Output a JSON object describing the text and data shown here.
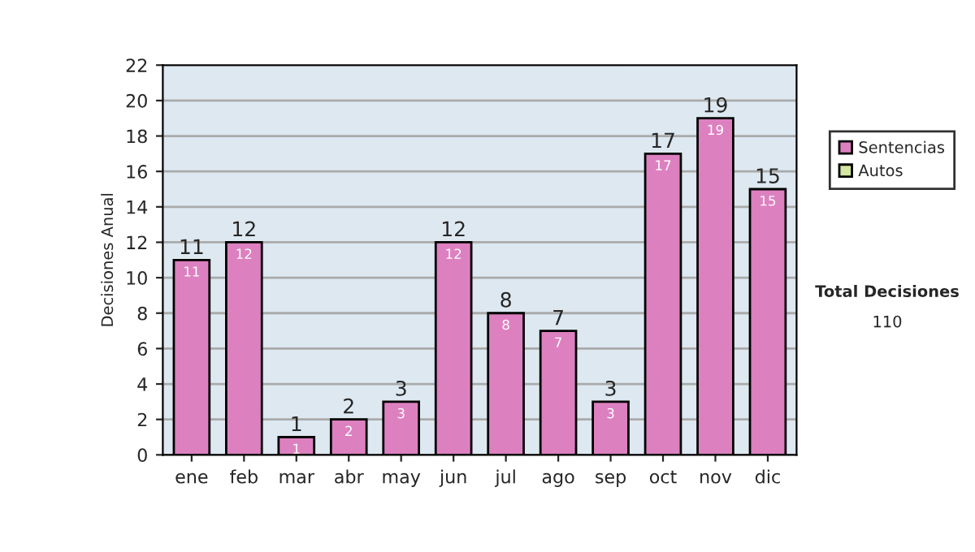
{
  "chart_data": {
    "type": "bar",
    "stacked": true,
    "ylabel": "Decisiones Anual",
    "categories": [
      "ene",
      "feb",
      "mar",
      "abr",
      "may",
      "jun",
      "jul",
      "ago",
      "sep",
      "oct",
      "nov",
      "dic"
    ],
    "series": [
      {
        "name": "Sentencias",
        "color": "#dd80c0",
        "values": [
          11,
          12,
          1,
          2,
          3,
          12,
          8,
          7,
          3,
          17,
          19,
          15
        ],
        "value_labels": [
          "11",
          "12",
          "1",
          "2",
          "3",
          "12",
          "8",
          "7",
          "3",
          "17",
          "19",
          "15"
        ]
      },
      {
        "name": "Autos",
        "color": "#d4e6a0",
        "values": [
          0,
          0,
          0,
          0,
          0,
          0,
          0,
          0,
          0,
          0,
          0,
          0
        ]
      }
    ],
    "totals": [
      "11",
      "12",
      "1",
      "2",
      "3",
      "12",
      "8",
      "7",
      "3",
      "17",
      "19",
      "15"
    ],
    "ylim": [
      0,
      22
    ],
    "yticks": [
      0,
      2,
      4,
      6,
      8,
      10,
      12,
      14,
      16,
      18,
      20,
      22
    ],
    "grid": "y",
    "legend": "right",
    "annotations": [
      "Total Decisiones",
      "110"
    ]
  }
}
